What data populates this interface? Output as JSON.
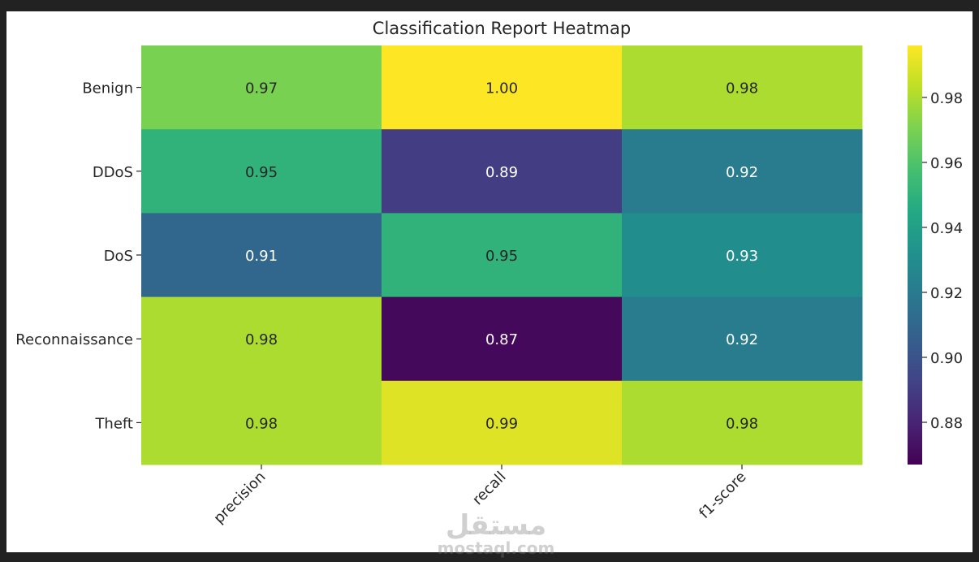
{
  "chart_data": {
    "type": "heatmap",
    "title": "Classification Report Heatmap",
    "rows": [
      "Benign",
      "DDoS",
      "DoS",
      "Reconnaissance",
      "Theft"
    ],
    "columns": [
      "precision",
      "recall",
      "f1-score"
    ],
    "values": [
      [
        0.97,
        1.0,
        0.98
      ],
      [
        0.95,
        0.89,
        0.92
      ],
      [
        0.91,
        0.95,
        0.93
      ],
      [
        0.98,
        0.87,
        0.92
      ],
      [
        0.98,
        0.99,
        0.98
      ]
    ],
    "colormap": "viridis",
    "colorbar": {
      "range": [
        0.867,
        0.996
      ],
      "ticks": [
        "0.88",
        "0.90",
        "0.92",
        "0.94",
        "0.96",
        "0.98"
      ]
    },
    "xtick_rotation": 45,
    "text_color_dark": "#262626",
    "text_color_light": "#ffffff"
  },
  "watermark": {
    "logo": "مستقل",
    "text": "mostaql.com"
  }
}
